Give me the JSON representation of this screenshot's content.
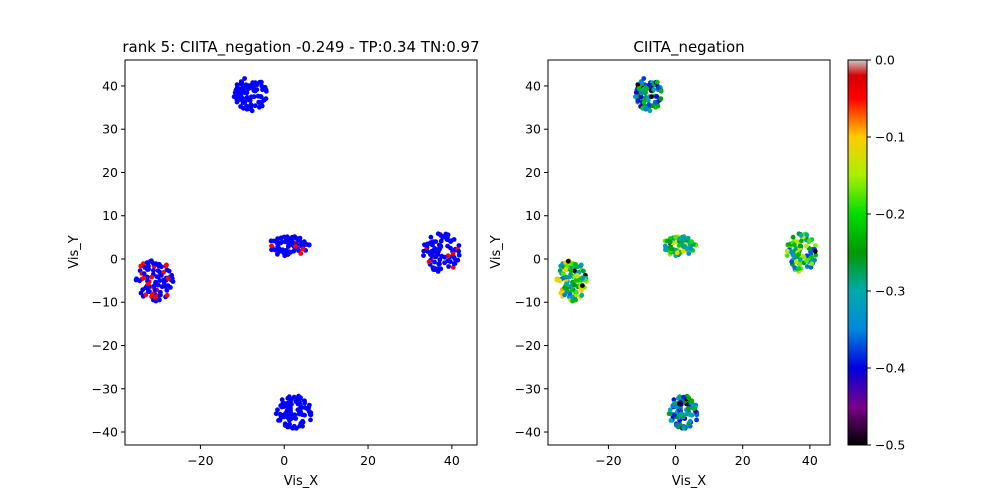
{
  "figure": {
    "colorbar": {
      "min": -0.5,
      "max": 0.0,
      "ticks": [
        0.0,
        -0.1,
        -0.2,
        -0.3,
        -0.4,
        -0.5
      ],
      "tick_labels": [
        "0.0",
        "−0.1",
        "−0.2",
        "−0.3",
        "−0.4",
        "−0.5"
      ],
      "colormap": "nipy_spectral",
      "stops": [
        {
          "value": -0.5,
          "color": "#000000"
        },
        {
          "value": -0.45,
          "color": "#7a008a"
        },
        {
          "value": -0.4,
          "color": "#0000dd"
        },
        {
          "value": -0.35,
          "color": "#0088dd"
        },
        {
          "value": -0.3,
          "color": "#00aaaa"
        },
        {
          "value": -0.25,
          "color": "#009900"
        },
        {
          "value": -0.2,
          "color": "#00dd00"
        },
        {
          "value": -0.15,
          "color": "#aaee00"
        },
        {
          "value": -0.1,
          "color": "#ffcc00"
        },
        {
          "value": -0.05,
          "color": "#ff0000"
        },
        {
          "value": -0.02,
          "color": "#d40000"
        },
        {
          "value": 0.0,
          "color": "#cccccc"
        }
      ]
    }
  },
  "chart_data": [
    {
      "type": "scatter",
      "title": "rank 5: CIITA_negation -0.249 - TP:0.34 TN:0.97",
      "xlabel": "Vis_X",
      "ylabel": "Vis_Y",
      "xlim": [
        -38,
        46
      ],
      "ylim": [
        -43,
        46
      ],
      "xticks": [
        -20,
        0,
        20,
        40
      ],
      "yticks": [
        -40,
        -30,
        -20,
        -10,
        0,
        10,
        20,
        30,
        40
      ],
      "xtick_labels": [
        "−20",
        "0",
        "20",
        "40"
      ],
      "ytick_labels": [
        "−40",
        "−30",
        "−20",
        "−10",
        "0",
        "10",
        "20",
        "30",
        "40"
      ],
      "point_colors": {
        "negative": "#0000ff",
        "positive": "#ff0000"
      },
      "clusters": [
        {
          "center": [
            -8,
            38
          ],
          "spread": [
            4,
            4
          ],
          "count": 90,
          "positive_fraction": 0.0
        },
        {
          "center": [
            1,
            3
          ],
          "spread": [
            5,
            2.3
          ],
          "count": 70,
          "positive_fraction": 0.12
        },
        {
          "center": [
            37.5,
            1.5
          ],
          "spread": [
            4.5,
            4.5
          ],
          "count": 90,
          "positive_fraction": 0.07
        },
        {
          "center": [
            -31,
            -5
          ],
          "spread": [
            4.5,
            5
          ],
          "count": 90,
          "positive_fraction": 0.22
        },
        {
          "center": [
            2.5,
            -35.5
          ],
          "spread": [
            4.5,
            4
          ],
          "count": 95,
          "positive_fraction": 0.0
        }
      ]
    },
    {
      "type": "scatter",
      "title": "CIITA_negation",
      "xlabel": "Vis_X",
      "ylabel": "Vis_Y",
      "xlim": [
        -38,
        46
      ],
      "ylim": [
        -43,
        46
      ],
      "xticks": [
        -20,
        0,
        20,
        40
      ],
      "yticks": [
        -40,
        -30,
        -20,
        -10,
        0,
        10,
        20,
        30,
        40
      ],
      "xtick_labels": [
        "−20",
        "0",
        "20",
        "40"
      ],
      "ytick_labels": [
        "−40",
        "−30",
        "−20",
        "−10",
        "0",
        "10",
        "20",
        "30",
        "40"
      ],
      "color_by": "CIITA_negation",
      "clusters": [
        {
          "center": [
            -8,
            38
          ],
          "spread": [
            4,
            4
          ],
          "count": 90,
          "value_range": [
            -0.42,
            -0.2
          ]
        },
        {
          "center": [
            1,
            3
          ],
          "spread": [
            5,
            2.3
          ],
          "count": 70,
          "value_range": [
            -0.35,
            -0.1
          ]
        },
        {
          "center": [
            37.5,
            1.5
          ],
          "spread": [
            4.5,
            4.5
          ],
          "count": 90,
          "value_range": [
            -0.38,
            -0.12
          ]
        },
        {
          "center": [
            -31,
            -5
          ],
          "spread": [
            4.5,
            5
          ],
          "count": 90,
          "value_range": [
            -0.36,
            -0.08
          ]
        },
        {
          "center": [
            2.5,
            -35.5
          ],
          "spread": [
            4.5,
            4
          ],
          "count": 95,
          "value_range": [
            -0.42,
            -0.22
          ]
        }
      ]
    }
  ]
}
